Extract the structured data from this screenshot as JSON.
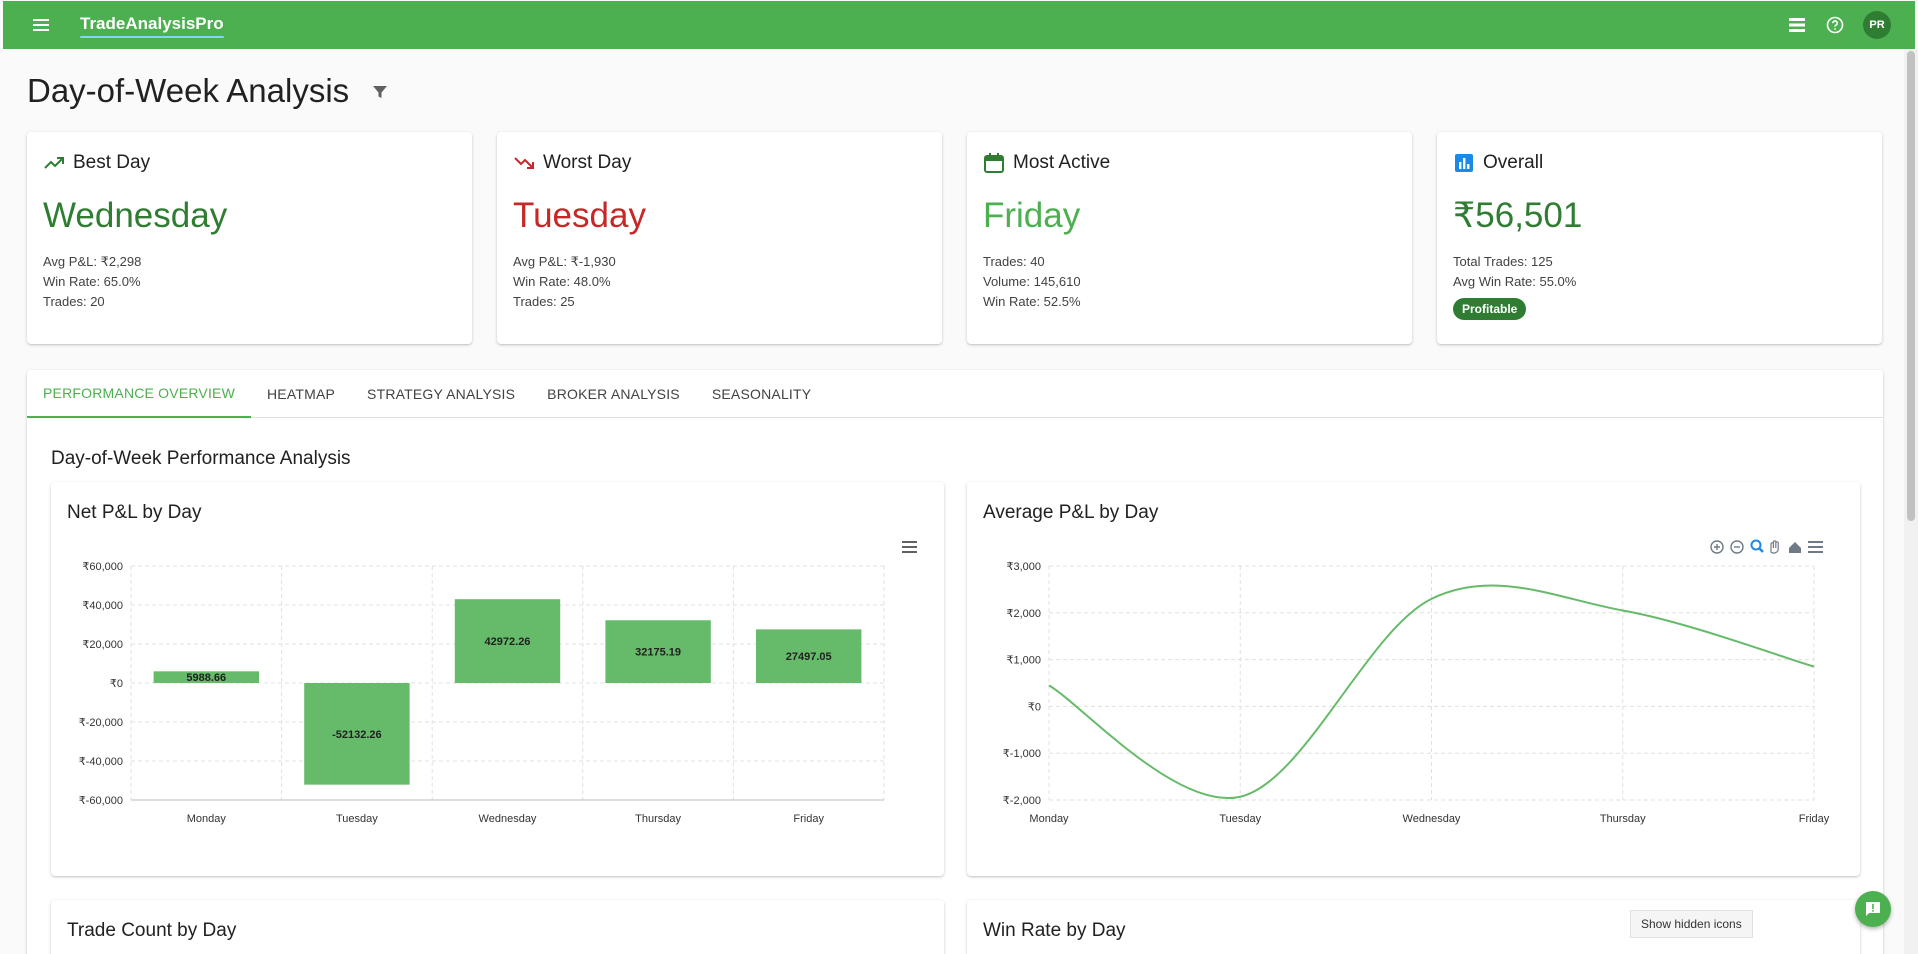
{
  "app": {
    "brand": "TradeAnalysisPro",
    "avatar_initials": "PR"
  },
  "page": {
    "title": "Day-of-Week Analysis"
  },
  "cards": [
    {
      "icon": "trending-up-icon",
      "title": "Best Day",
      "value": "Wednesday",
      "value_color": "#2e7d32",
      "lines": [
        "Avg P&L: ₹2,298",
        "Win Rate: 65.0%",
        "Trades: 20"
      ]
    },
    {
      "icon": "trending-down-icon",
      "title": "Worst Day",
      "value": "Tuesday",
      "value_color": "#c62828",
      "lines": [
        "Avg P&L: ₹-1,930",
        "Win Rate: 48.0%",
        "Trades: 25"
      ]
    },
    {
      "icon": "calendar-icon",
      "title": "Most Active",
      "value": "Friday",
      "value_color": "#4caf50",
      "lines": [
        "Trades: 40",
        "Volume: 145,610",
        "Win Rate: 52.5%"
      ]
    },
    {
      "icon": "bar-chart-icon",
      "title": "Overall",
      "value": "₹56,501",
      "value_color": "#2e7d32",
      "lines": [
        "Total Trades: 125",
        "Avg Win Rate: 55.0%"
      ],
      "chip": "Profitable"
    }
  ],
  "tabs": [
    "PERFORMANCE OVERVIEW",
    "HEATMAP",
    "STRATEGY ANALYSIS",
    "BROKER ANALYSIS",
    "SEASONALITY"
  ],
  "active_tab": 0,
  "section_title": "Day-of-Week Performance Analysis",
  "bottom_titles": [
    "Trade Count by Day",
    "Win Rate by Day"
  ],
  "hidden_icons_tooltip": "Show hidden icons",
  "colors": {
    "accent": "#4caf50",
    "bar": "#66bb6a",
    "loss": "#c62828"
  },
  "chart_data": [
    {
      "type": "bar",
      "title": "Net P&L by Day",
      "categories": [
        "Monday",
        "Tuesday",
        "Wednesday",
        "Thursday",
        "Friday"
      ],
      "values": [
        5988.66,
        -52132.26,
        42972.26,
        32175.19,
        27497.05
      ],
      "data_labels": [
        "5988.66",
        "-52132.26",
        "42972.26",
        "32175.19",
        "27497.05"
      ],
      "ylim": [
        -60000,
        60000
      ],
      "yticks": [
        60000,
        40000,
        20000,
        0,
        -20000,
        -40000,
        -60000
      ],
      "ytick_labels": [
        "₹60,000",
        "₹40,000",
        "₹20,000",
        "₹0",
        "₹-20,000",
        "₹-40,000",
        "₹-60,000"
      ],
      "grid": true
    },
    {
      "type": "line",
      "title": "Average P&L by Day",
      "categories": [
        "Monday",
        "Tuesday",
        "Wednesday",
        "Thursday",
        "Friday"
      ],
      "values": [
        450,
        -1930,
        2298,
        2050,
        850
      ],
      "ylim": [
        -2000,
        3000
      ],
      "yticks": [
        3000,
        2000,
        1000,
        0,
        -1000,
        -2000
      ],
      "ytick_labels": [
        "₹3,000",
        "₹2,000",
        "₹1,000",
        "₹0",
        "₹-1,000",
        "₹-2,000"
      ],
      "grid": true
    }
  ]
}
